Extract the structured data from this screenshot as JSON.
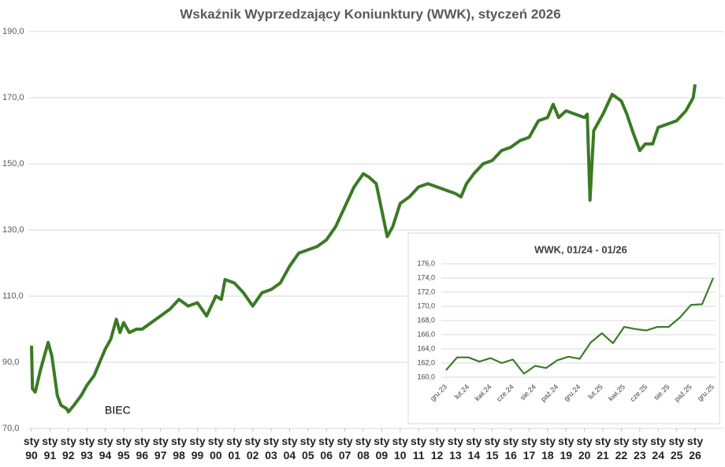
{
  "chart_data": [
    {
      "type": "line",
      "title": "Wskaźnik Wyprzedzający Koniunktury (WWK), styczeń 2026",
      "annotation": "BIEC",
      "color": "#3b7a24",
      "grid": true,
      "xlim": [
        1990,
        2026
      ],
      "ylim": [
        70,
        190
      ],
      "yticks": [
        {
          "value": 70,
          "label": "70,0"
        },
        {
          "value": 90,
          "label": "90,0"
        },
        {
          "value": 110,
          "label": "110,0"
        },
        {
          "value": 130,
          "label": "130,0"
        },
        {
          "value": 150,
          "label": "150,0"
        },
        {
          "value": 170,
          "label": "170,0"
        },
        {
          "value": 190,
          "label": "190,0"
        }
      ],
      "xticks": [
        {
          "value": 1990,
          "label": "sty 90"
        },
        {
          "value": 1991,
          "label": "sty 91"
        },
        {
          "value": 1992,
          "label": "sty 92"
        },
        {
          "value": 1993,
          "label": "sty 93"
        },
        {
          "value": 1994,
          "label": "sty 94"
        },
        {
          "value": 1995,
          "label": "sty 95"
        },
        {
          "value": 1996,
          "label": "sty 96"
        },
        {
          "value": 1997,
          "label": "sty 97"
        },
        {
          "value": 1998,
          "label": "sty 98"
        },
        {
          "value": 1999,
          "label": "sty 99"
        },
        {
          "value": 2000,
          "label": "sty 00"
        },
        {
          "value": 2001,
          "label": "sty 01"
        },
        {
          "value": 2002,
          "label": "sty 02"
        },
        {
          "value": 2003,
          "label": "sty 03"
        },
        {
          "value": 2004,
          "label": "sty 04"
        },
        {
          "value": 2005,
          "label": "sty 05"
        },
        {
          "value": 2006,
          "label": "sty 06"
        },
        {
          "value": 2007,
          "label": "sty 07"
        },
        {
          "value": 2008,
          "label": "sty 08"
        },
        {
          "value": 2009,
          "label": "sty 09"
        },
        {
          "value": 2010,
          "label": "sty 10"
        },
        {
          "value": 2011,
          "label": "sty 11"
        },
        {
          "value": 2012,
          "label": "sty 12"
        },
        {
          "value": 2013,
          "label": "sty 13"
        },
        {
          "value": 2014,
          "label": "sty 14"
        },
        {
          "value": 2015,
          "label": "sty 15"
        },
        {
          "value": 2016,
          "label": "sty 16"
        },
        {
          "value": 2017,
          "label": "sty 17"
        },
        {
          "value": 2018,
          "label": "sty 18"
        },
        {
          "value": 2019,
          "label": "sty 19"
        },
        {
          "value": 2020,
          "label": "sty 20"
        },
        {
          "value": 2021,
          "label": "sty 21"
        },
        {
          "value": 2022,
          "label": "sty 22"
        },
        {
          "value": 2023,
          "label": "sty 23"
        },
        {
          "value": 2024,
          "label": "sty 24"
        },
        {
          "value": 2025,
          "label": "sty 25"
        },
        {
          "value": 2026,
          "label": "sty 26"
        }
      ],
      "x": [
        1990.0,
        1990.05,
        1990.2,
        1990.5,
        1990.9,
        1991.1,
        1991.2,
        1991.4,
        1991.6,
        1991.9,
        1992.0,
        1992.3,
        1992.7,
        1993.0,
        1993.4,
        1993.7,
        1994.0,
        1994.3,
        1994.6,
        1994.8,
        1995.0,
        1995.3,
        1995.7,
        1996.0,
        1996.5,
        1997.0,
        1997.5,
        1998.0,
        1998.5,
        1999.0,
        1999.5,
        2000.0,
        2000.3,
        2000.5,
        2001.0,
        2001.5,
        2002.0,
        2002.5,
        2003.0,
        2003.5,
        2004.0,
        2004.5,
        2005.0,
        2005.5,
        2006.0,
        2006.5,
        2007.0,
        2007.5,
        2008.0,
        2008.3,
        2008.7,
        2009.0,
        2009.3,
        2009.6,
        2010.0,
        2010.5,
        2011.0,
        2011.5,
        2012.0,
        2012.5,
        2013.0,
        2013.3,
        2013.6,
        2014.0,
        2014.5,
        2015.0,
        2015.5,
        2016.0,
        2016.5,
        2017.0,
        2017.5,
        2018.0,
        2018.3,
        2018.6,
        2019.0,
        2019.5,
        2020.0,
        2020.15,
        2020.3,
        2020.5,
        2021.0,
        2021.5,
        2022.0,
        2022.3,
        2022.6,
        2023.0,
        2023.3,
        2023.7,
        2024.0,
        2024.5,
        2025.0,
        2025.5,
        2025.9,
        2026.0
      ],
      "values": [
        95,
        82,
        81,
        88,
        96,
        92,
        88,
        80,
        77,
        76,
        75,
        77,
        80,
        83,
        86,
        90,
        94,
        97,
        103,
        99,
        102,
        99,
        100,
        100,
        102,
        104,
        106,
        109,
        107,
        108,
        104,
        110,
        109,
        115,
        114,
        111,
        107,
        111,
        112,
        114,
        119,
        123,
        124,
        125,
        127,
        131,
        137,
        143,
        147,
        146,
        144,
        136,
        128,
        131,
        138,
        140,
        143,
        144,
        143,
        142,
        141,
        140,
        144,
        147,
        150,
        151,
        154,
        155,
        157,
        158,
        163,
        164,
        168,
        164,
        166,
        165,
        164,
        165,
        139,
        160,
        165,
        171,
        169,
        165,
        160,
        154,
        156,
        156,
        161,
        162,
        163,
        166,
        170,
        174
      ]
    },
    {
      "type": "line",
      "title": "WWK, 01/24 - 01/26",
      "color": "#3d7a28",
      "grid": true,
      "ylim": [
        160,
        176
      ],
      "yticks": [
        {
          "value": 160,
          "label": "160,0"
        },
        {
          "value": 162,
          "label": "162,0"
        },
        {
          "value": 164,
          "label": "164,0"
        },
        {
          "value": 166,
          "label": "166,0"
        },
        {
          "value": 168,
          "label": "168,0"
        },
        {
          "value": 170,
          "label": "170,0"
        },
        {
          "value": 172,
          "label": "172,0"
        },
        {
          "value": 174,
          "label": "174,0"
        },
        {
          "value": 176,
          "label": "176,0"
        }
      ],
      "categories": [
        "gru.23",
        null,
        "lut.24",
        null,
        "kwi.24",
        null,
        "cze.24",
        null,
        "sie.24",
        null,
        "paź.24",
        null,
        "gru.24",
        null,
        "lut.25",
        null,
        "kwi.25",
        null,
        "cze.25",
        null,
        "sie.25",
        null,
        "paź.25",
        null,
        "gru.25"
      ],
      "values": [
        161.0,
        162.8,
        162.8,
        162.2,
        162.7,
        162.0,
        162.5,
        160.5,
        161.6,
        161.3,
        162.4,
        162.9,
        162.6,
        164.9,
        166.2,
        164.8,
        167.1,
        166.8,
        166.6,
        167.1,
        167.1,
        168.4,
        170.2,
        170.3,
        174.0
      ]
    }
  ]
}
